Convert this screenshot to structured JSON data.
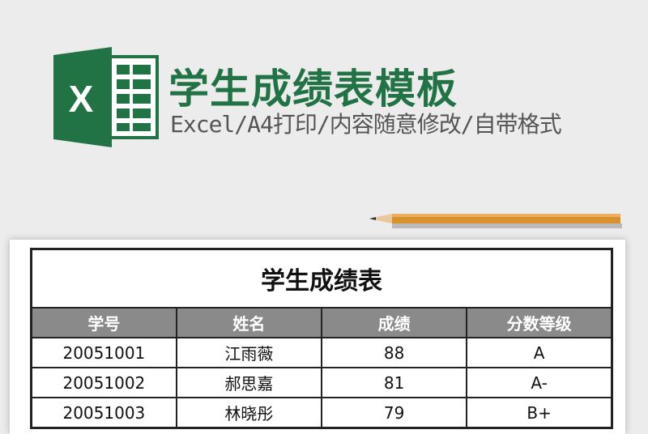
{
  "header": {
    "title": "学生成绩表模板",
    "subtitle": "Excel/A4打印/内容随意修改/自带格式",
    "logo_letter": "X",
    "brand_color": "#217346"
  },
  "sheet": {
    "title": "学生成绩表",
    "columns": [
      "学号",
      "姓名",
      "成绩",
      "分数等级"
    ],
    "rows": [
      [
        "20051001",
        "江雨薇",
        "88",
        "A"
      ],
      [
        "20051002",
        "郝思嘉",
        "81",
        "A-"
      ],
      [
        "20051003",
        "林晓彤",
        "79",
        "B+"
      ]
    ]
  }
}
